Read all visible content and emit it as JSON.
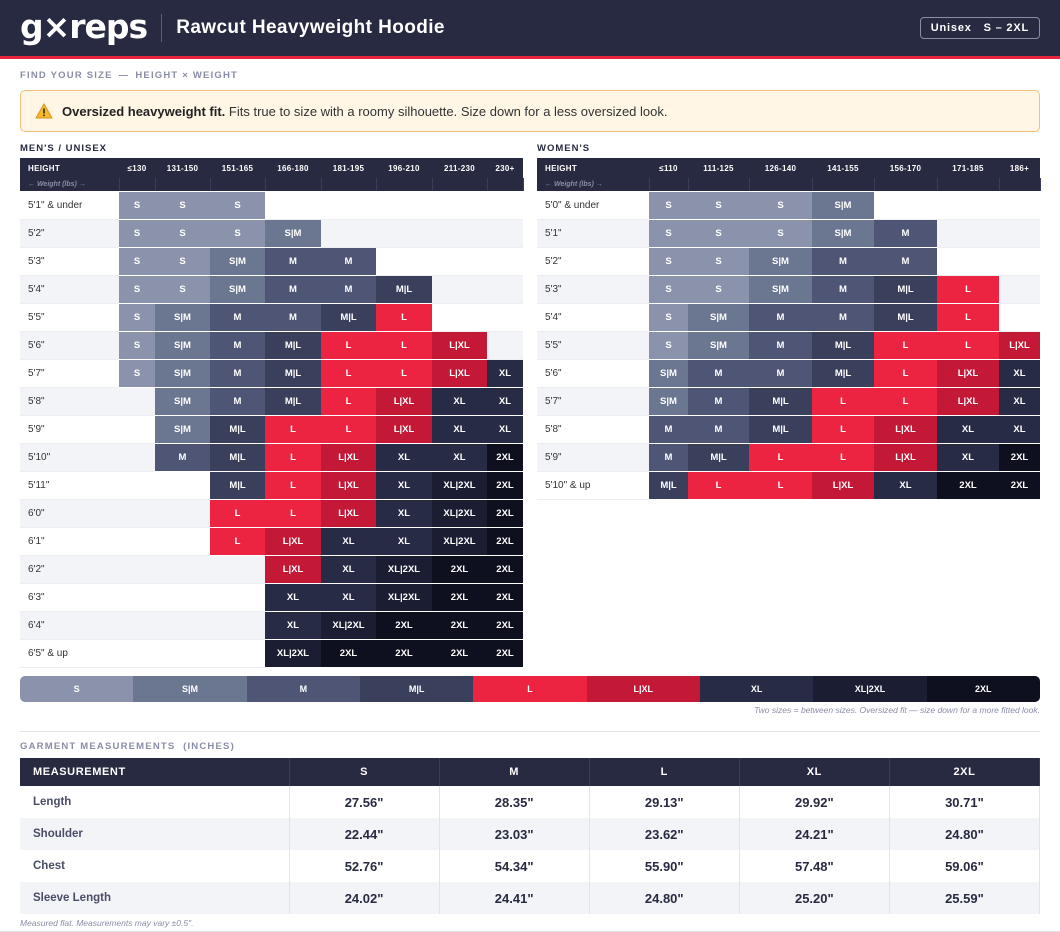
{
  "header": {
    "logo": "g×reps",
    "title": "Rawcut Heavyweight Hoodie",
    "badge_fit": "Unisex",
    "badge_range": "S – 2XL"
  },
  "find_size": {
    "label": "FIND YOUR SIZE",
    "sep": "—",
    "sub": "HEIGHT × WEIGHT"
  },
  "note": {
    "bold": "Oversized heavyweight fit.",
    "text": "Fits true to size with a roomy silhouette. Size down for a less oversized look."
  },
  "colors": {
    "S": "#8a93ab",
    "S|M": "#6b7690",
    "M": "#4e5575",
    "M|L": "#3a3f5c",
    "L": "#ec2341",
    "L|XL": "#c41837",
    "XL": "#282b45",
    "XL|2XL": "#1b1d33",
    "2XL": "#0e0f1f"
  },
  "mens": {
    "title": "MEN'S / UNISEX",
    "height_label": "HEIGHT",
    "weight_label": "← Weight (lbs) →",
    "weights": [
      "≤130",
      "131-150",
      "151-165",
      "166-180",
      "181-195",
      "196-210",
      "211-230",
      "230+"
    ],
    "rows": [
      {
        "height": "5'1\" & under",
        "sizes": [
          "S",
          "S",
          "S",
          "",
          "",
          "",
          "",
          ""
        ]
      },
      {
        "height": "5'2\"",
        "sizes": [
          "S",
          "S",
          "S",
          "S|M",
          "",
          "",
          "",
          ""
        ]
      },
      {
        "height": "5'3\"",
        "sizes": [
          "S",
          "S",
          "S|M",
          "M",
          "M",
          "",
          "",
          ""
        ]
      },
      {
        "height": "5'4\"",
        "sizes": [
          "S",
          "S",
          "S|M",
          "M",
          "M",
          "M|L",
          "",
          ""
        ]
      },
      {
        "height": "5'5\"",
        "sizes": [
          "S",
          "S|M",
          "M",
          "M",
          "M|L",
          "L",
          "",
          ""
        ]
      },
      {
        "height": "5'6\"",
        "sizes": [
          "S",
          "S|M",
          "M",
          "M|L",
          "L",
          "L",
          "L|XL",
          ""
        ]
      },
      {
        "height": "5'7\"",
        "sizes": [
          "S",
          "S|M",
          "M",
          "M|L",
          "L",
          "L",
          "L|XL",
          "XL"
        ]
      },
      {
        "height": "5'8\"",
        "sizes": [
          "",
          "S|M",
          "M",
          "M|L",
          "L",
          "L|XL",
          "XL",
          "XL"
        ]
      },
      {
        "height": "5'9\"",
        "sizes": [
          "",
          "S|M",
          "M|L",
          "L",
          "L",
          "L|XL",
          "XL",
          "XL"
        ]
      },
      {
        "height": "5'10\"",
        "sizes": [
          "",
          "M",
          "M|L",
          "L",
          "L|XL",
          "XL",
          "XL",
          "2XL"
        ]
      },
      {
        "height": "5'11\"",
        "sizes": [
          "",
          "",
          "M|L",
          "L",
          "L|XL",
          "XL",
          "XL|2XL",
          "2XL"
        ]
      },
      {
        "height": "6'0\"",
        "sizes": [
          "",
          "",
          "L",
          "L",
          "L|XL",
          "XL",
          "XL|2XL",
          "2XL"
        ]
      },
      {
        "height": "6'1\"",
        "sizes": [
          "",
          "",
          "L",
          "L|XL",
          "XL",
          "XL",
          "XL|2XL",
          "2XL"
        ]
      },
      {
        "height": "6'2\"",
        "sizes": [
          "",
          "",
          "",
          "L|XL",
          "XL",
          "XL|2XL",
          "2XL",
          "2XL"
        ]
      },
      {
        "height": "6'3\"",
        "sizes": [
          "",
          "",
          "",
          "XL",
          "XL",
          "XL|2XL",
          "2XL",
          "2XL"
        ]
      },
      {
        "height": "6'4\"",
        "sizes": [
          "",
          "",
          "",
          "XL",
          "XL|2XL",
          "2XL",
          "2XL",
          "2XL"
        ]
      },
      {
        "height": "6'5\" & up",
        "sizes": [
          "",
          "",
          "",
          "XL|2XL",
          "2XL",
          "2XL",
          "2XL",
          "2XL"
        ]
      }
    ]
  },
  "womens": {
    "title": "WOMEN'S",
    "height_label": "HEIGHT",
    "weight_label": "← Weight (lbs) →",
    "weights": [
      "≤110",
      "111-125",
      "126-140",
      "141-155",
      "156-170",
      "171-185",
      "186+"
    ],
    "rows": [
      {
        "height": "5'0\" & under",
        "sizes": [
          "S",
          "S",
          "S",
          "S|M",
          "",
          "",
          ""
        ]
      },
      {
        "height": "5'1\"",
        "sizes": [
          "S",
          "S",
          "S",
          "S|M",
          "M",
          "",
          ""
        ]
      },
      {
        "height": "5'2\"",
        "sizes": [
          "S",
          "S",
          "S|M",
          "M",
          "M",
          "",
          ""
        ]
      },
      {
        "height": "5'3\"",
        "sizes": [
          "S",
          "S",
          "S|M",
          "M",
          "M|L",
          "L",
          ""
        ]
      },
      {
        "height": "5'4\"",
        "sizes": [
          "S",
          "S|M",
          "M",
          "M",
          "M|L",
          "L",
          ""
        ]
      },
      {
        "height": "5'5\"",
        "sizes": [
          "S",
          "S|M",
          "M",
          "M|L",
          "L",
          "L",
          "L|XL"
        ]
      },
      {
        "height": "5'6\"",
        "sizes": [
          "S|M",
          "M",
          "M",
          "M|L",
          "L",
          "L|XL",
          "XL"
        ]
      },
      {
        "height": "5'7\"",
        "sizes": [
          "S|M",
          "M",
          "M|L",
          "L",
          "L",
          "L|XL",
          "XL"
        ]
      },
      {
        "height": "5'8\"",
        "sizes": [
          "M",
          "M",
          "M|L",
          "L",
          "L|XL",
          "XL",
          "XL"
        ]
      },
      {
        "height": "5'9\"",
        "sizes": [
          "M",
          "M|L",
          "L",
          "L",
          "L|XL",
          "XL",
          "2XL"
        ]
      },
      {
        "height": "5'10\" & up",
        "sizes": [
          "M|L",
          "L",
          "L",
          "L|XL",
          "XL",
          "2XL",
          "2XL"
        ]
      }
    ]
  },
  "legend": {
    "items": [
      "S",
      "S|M",
      "M",
      "M|L",
      "L",
      "L|XL",
      "XL",
      "XL|2XL",
      "2XL"
    ],
    "note": "Two sizes = between sizes. Oversized fit — size down for a more fitted look."
  },
  "measurements": {
    "label": "GARMENT MEASUREMENTS",
    "units": "(INCHES)",
    "header": [
      "MEASUREMENT",
      "S",
      "M",
      "L",
      "XL",
      "2XL"
    ],
    "rows": [
      {
        "name": "Length",
        "values": [
          "27.56\"",
          "28.35\"",
          "29.13\"",
          "29.92\"",
          "30.71\""
        ]
      },
      {
        "name": "Shoulder",
        "values": [
          "22.44\"",
          "23.03\"",
          "23.62\"",
          "24.21\"",
          "24.80\""
        ]
      },
      {
        "name": "Chest",
        "values": [
          "52.76\"",
          "54.34\"",
          "55.90\"",
          "57.48\"",
          "59.06\""
        ]
      },
      {
        "name": "Sleeve Length",
        "values": [
          "24.02\"",
          "24.41\"",
          "24.80\"",
          "25.20\"",
          "25.59\""
        ]
      }
    ],
    "note": "Measured flat. Measurements may vary ±0.5\"."
  }
}
